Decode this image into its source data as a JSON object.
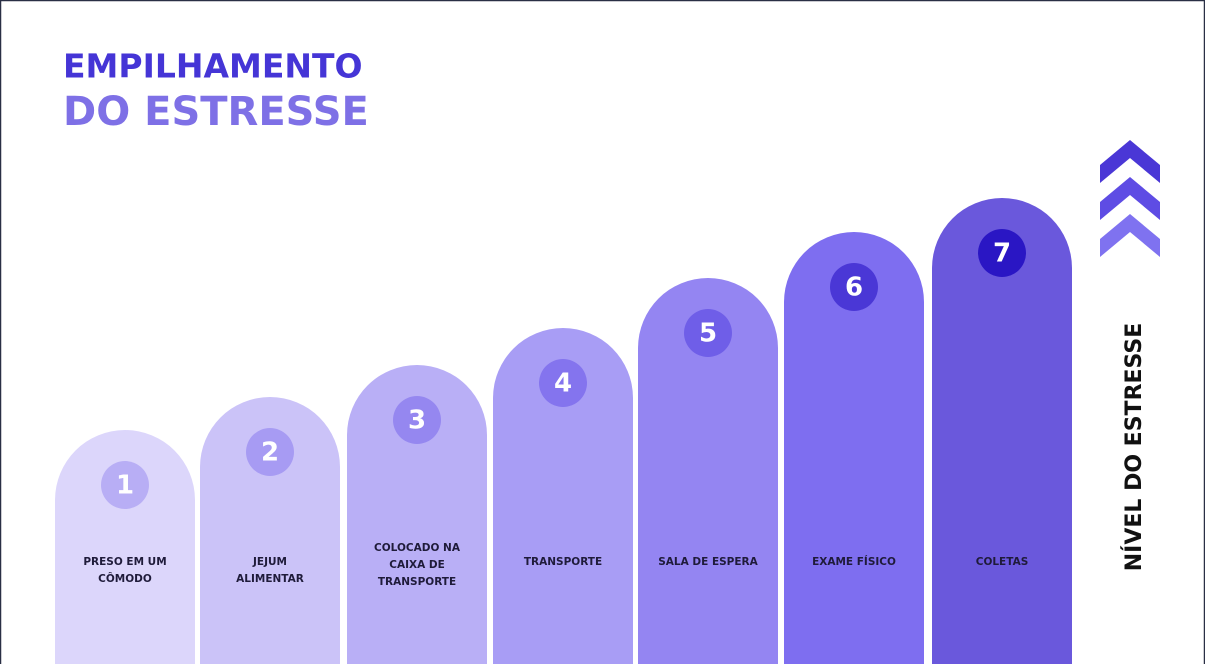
{
  "header": {
    "title_line1": "EMPILHAMENTO",
    "title_line2": "DO ESTRESSE"
  },
  "steps": [
    {
      "number": "1",
      "label": [
        "PRESO EM UM",
        "CÔMODO"
      ]
    },
    {
      "number": "2",
      "label": [
        "JEJUM",
        "ALIMENTAR"
      ]
    },
    {
      "number": "3",
      "label": [
        "COLOCADO NA",
        "CAIXA DE",
        "TRANSPORTE"
      ]
    },
    {
      "number": "4",
      "label": [
        "TRANSPORTE"
      ]
    },
    {
      "number": "5",
      "label": [
        "SALA DE ESPERA"
      ]
    },
    {
      "number": "6",
      "label": [
        "EXAME FÍSICO"
      ]
    },
    {
      "number": "7",
      "label": [
        "COLETAS"
      ]
    }
  ],
  "side_label": "NÍVEL DO ESTRESSE"
}
